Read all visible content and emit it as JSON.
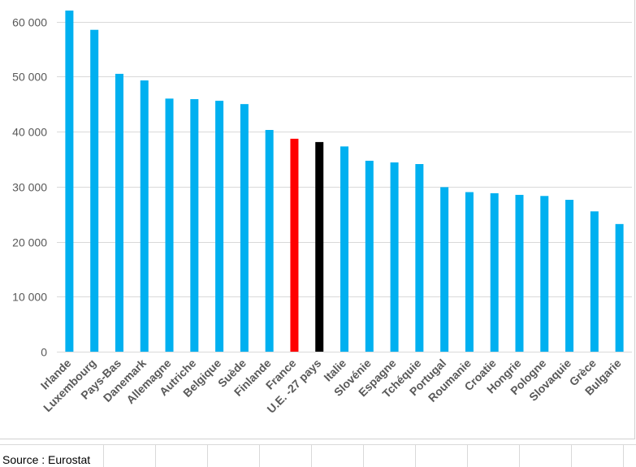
{
  "chart_data": {
    "type": "bar",
    "title": "",
    "xlabel": "",
    "ylabel": "",
    "ylim": [
      0,
      62000
    ],
    "yticks": [
      0,
      10000,
      20000,
      30000,
      40000,
      50000,
      60000
    ],
    "ytick_labels": [
      "0",
      "10 000",
      "20 000",
      "30 000",
      "40 000",
      "50 000",
      "60 000"
    ],
    "grid": true,
    "categories": [
      "Irlande",
      "Luxembourg",
      "Pays-Bas",
      "Danemark",
      "Allemagne",
      "Autriche",
      "Belgique",
      "Suède",
      "Finlande",
      "France",
      "U.E. -27 pays",
      "Italie",
      "Slovénie",
      "Espagne",
      "Tchéquie",
      "Portugal",
      "Roumanie",
      "Croatie",
      "Hongrie",
      "Pologne",
      "Slovaquie",
      "Grèce",
      "Bulgarie"
    ],
    "values": [
      62000,
      58500,
      50500,
      49300,
      46000,
      45900,
      45600,
      45000,
      40300,
      38700,
      38100,
      37300,
      34700,
      34400,
      34100,
      29900,
      29000,
      28800,
      28500,
      28300,
      27600,
      25500,
      23200
    ],
    "colors": {
      "default": "#00b0f0",
      "France": "#ff0000",
      "U.E. -27 pays": "#000000"
    }
  },
  "footer": {
    "source": "Source : Eurostat"
  }
}
